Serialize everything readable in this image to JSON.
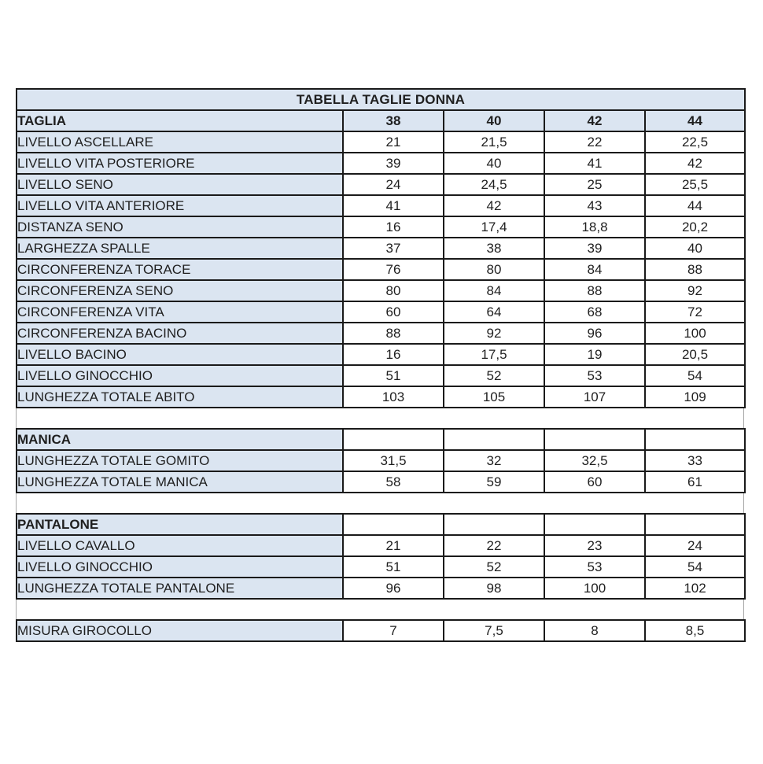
{
  "title": "TABELLA TAGLIE DONNA",
  "column_header_label": "TAGLIA",
  "size_columns": [
    "38",
    "40",
    "42",
    "44"
  ],
  "sections": [
    {
      "name": "abito",
      "header": null,
      "rows": [
        {
          "label": "LIVELLO ASCELLARE",
          "values": [
            "21",
            "21,5",
            "22",
            "22,5"
          ]
        },
        {
          "label": "LIVELLO VITA POSTERIORE",
          "values": [
            "39",
            "40",
            "41",
            "42"
          ]
        },
        {
          "label": "LIVELLO SENO",
          "values": [
            "24",
            "24,5",
            "25",
            "25,5"
          ]
        },
        {
          "label": "LIVELLO VITA ANTERIORE",
          "values": [
            "41",
            "42",
            "43",
            "44"
          ]
        },
        {
          "label": "DISTANZA SENO",
          "values": [
            "16",
            "17,4",
            "18,8",
            "20,2"
          ]
        },
        {
          "label": "LARGHEZZA SPALLE",
          "values": [
            "37",
            "38",
            "39",
            "40"
          ]
        },
        {
          "label": "CIRCONFERENZA TORACE",
          "values": [
            "76",
            "80",
            "84",
            "88"
          ]
        },
        {
          "label": "CIRCONFERENZA SENO",
          "values": [
            "80",
            "84",
            "88",
            "92"
          ]
        },
        {
          "label": "CIRCONFERENZA VITA",
          "values": [
            "60",
            "64",
            "68",
            "72"
          ]
        },
        {
          "label": "CIRCONFERENZA BACINO",
          "values": [
            "88",
            "92",
            "96",
            "100"
          ]
        },
        {
          "label": "LIVELLO BACINO",
          "values": [
            "16",
            "17,5",
            "19",
            "20,5"
          ]
        },
        {
          "label": "LIVELLO GINOCCHIO",
          "values": [
            "51",
            "52",
            "53",
            "54"
          ]
        },
        {
          "label": "LUNGHEZZA TOTALE ABITO",
          "values": [
            "103",
            "105",
            "107",
            "109"
          ]
        }
      ]
    },
    {
      "name": "manica",
      "header": "MANICA",
      "rows": [
        {
          "label": "LUNGHEZZA TOTALE GOMITO",
          "values": [
            "31,5",
            "32",
            "32,5",
            "33"
          ]
        },
        {
          "label": "LUNGHEZZA TOTALE MANICA",
          "values": [
            "58",
            "59",
            "60",
            "61"
          ]
        }
      ]
    },
    {
      "name": "pantalone",
      "header": "PANTALONE",
      "rows": [
        {
          "label": "LIVELLO CAVALLO",
          "values": [
            "21",
            "22",
            "23",
            "24"
          ]
        },
        {
          "label": "LIVELLO GINOCCHIO",
          "values": [
            "51",
            "52",
            "53",
            "54"
          ]
        },
        {
          "label": "LUNGHEZZA TOTALE PANTALONE",
          "values": [
            "96",
            "98",
            "100",
            "102"
          ]
        }
      ]
    },
    {
      "name": "girocollo",
      "header": null,
      "rows": [
        {
          "label": "MISURA GIROCOLLO",
          "values": [
            "7",
            "7,5",
            "8",
            "8,5"
          ]
        }
      ]
    }
  ],
  "colors": {
    "cell_header_bg": "#dbe5f1",
    "border": "#1a1a1a",
    "text": "#1f1f1f"
  }
}
